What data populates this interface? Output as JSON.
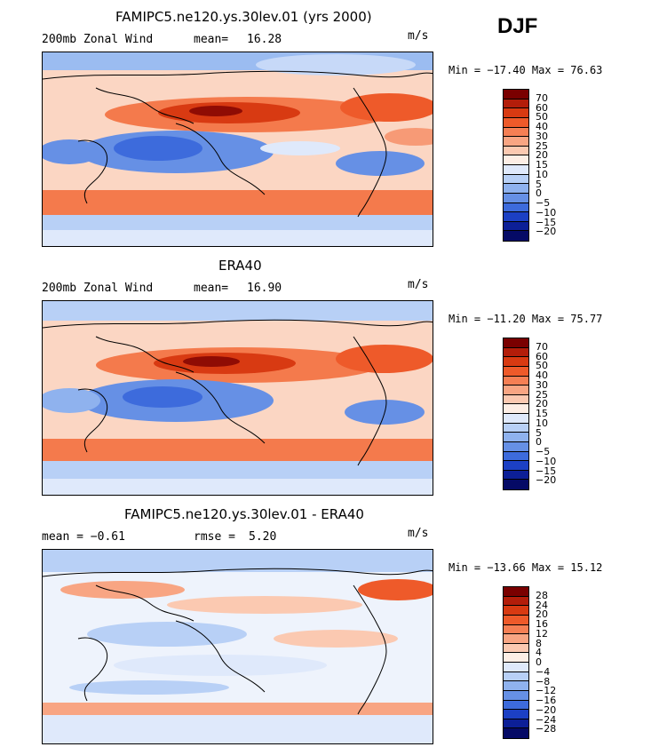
{
  "season": "DJF",
  "panels": [
    {
      "title": "FAMIPC5.ne120.ys.30lev.01 (yrs 2000)",
      "left_label": "200mb Zonal Wind",
      "stat_label": "mean=",
      "stat_value": "16.28",
      "units": "m/s",
      "minmax": "Min = −17.40 Max =  76.63",
      "colorbar_levels": [
        "70",
        "60",
        "50",
        "40",
        "30",
        "25",
        "20",
        "15",
        "10",
        "5",
        "0",
        "−5",
        "−10",
        "−15",
        "−20"
      ]
    },
    {
      "title": "ERA40",
      "left_label": "200mb Zonal Wind",
      "stat_label": "mean=",
      "stat_value": "16.90",
      "units": "m/s",
      "minmax": "Min = −11.20 Max =  75.77",
      "colorbar_levels": [
        "70",
        "60",
        "50",
        "40",
        "30",
        "25",
        "20",
        "15",
        "10",
        "5",
        "0",
        "−5",
        "−10",
        "−15",
        "−20"
      ]
    },
    {
      "title": "FAMIPC5.ne120.ys.30lev.01 - ERA40",
      "left_label": "mean =   −0.61",
      "stat_label": "rmse =",
      "stat_value": "5.20",
      "units": "m/s",
      "minmax": "Min = −13.66 Max =  15.12",
      "colorbar_levels": [
        "28",
        "24",
        "20",
        "16",
        "12",
        "8",
        "4",
        "0",
        "−4",
        "−8",
        "−12",
        "−16",
        "−20",
        "−24",
        "−28"
      ]
    }
  ],
  "colorbar_colors": [
    "#7a0000",
    "#b31d0a",
    "#d83a12",
    "#ee5a2a",
    "#f57f54",
    "#f8a583",
    "#fbc9b1",
    "#fdeee5",
    "#dfe9fb",
    "#b8d0f6",
    "#8fb2ee",
    "#6690e5",
    "#3d6bdc",
    "#1c40c4",
    "#0c1f97",
    "#050a66"
  ]
}
